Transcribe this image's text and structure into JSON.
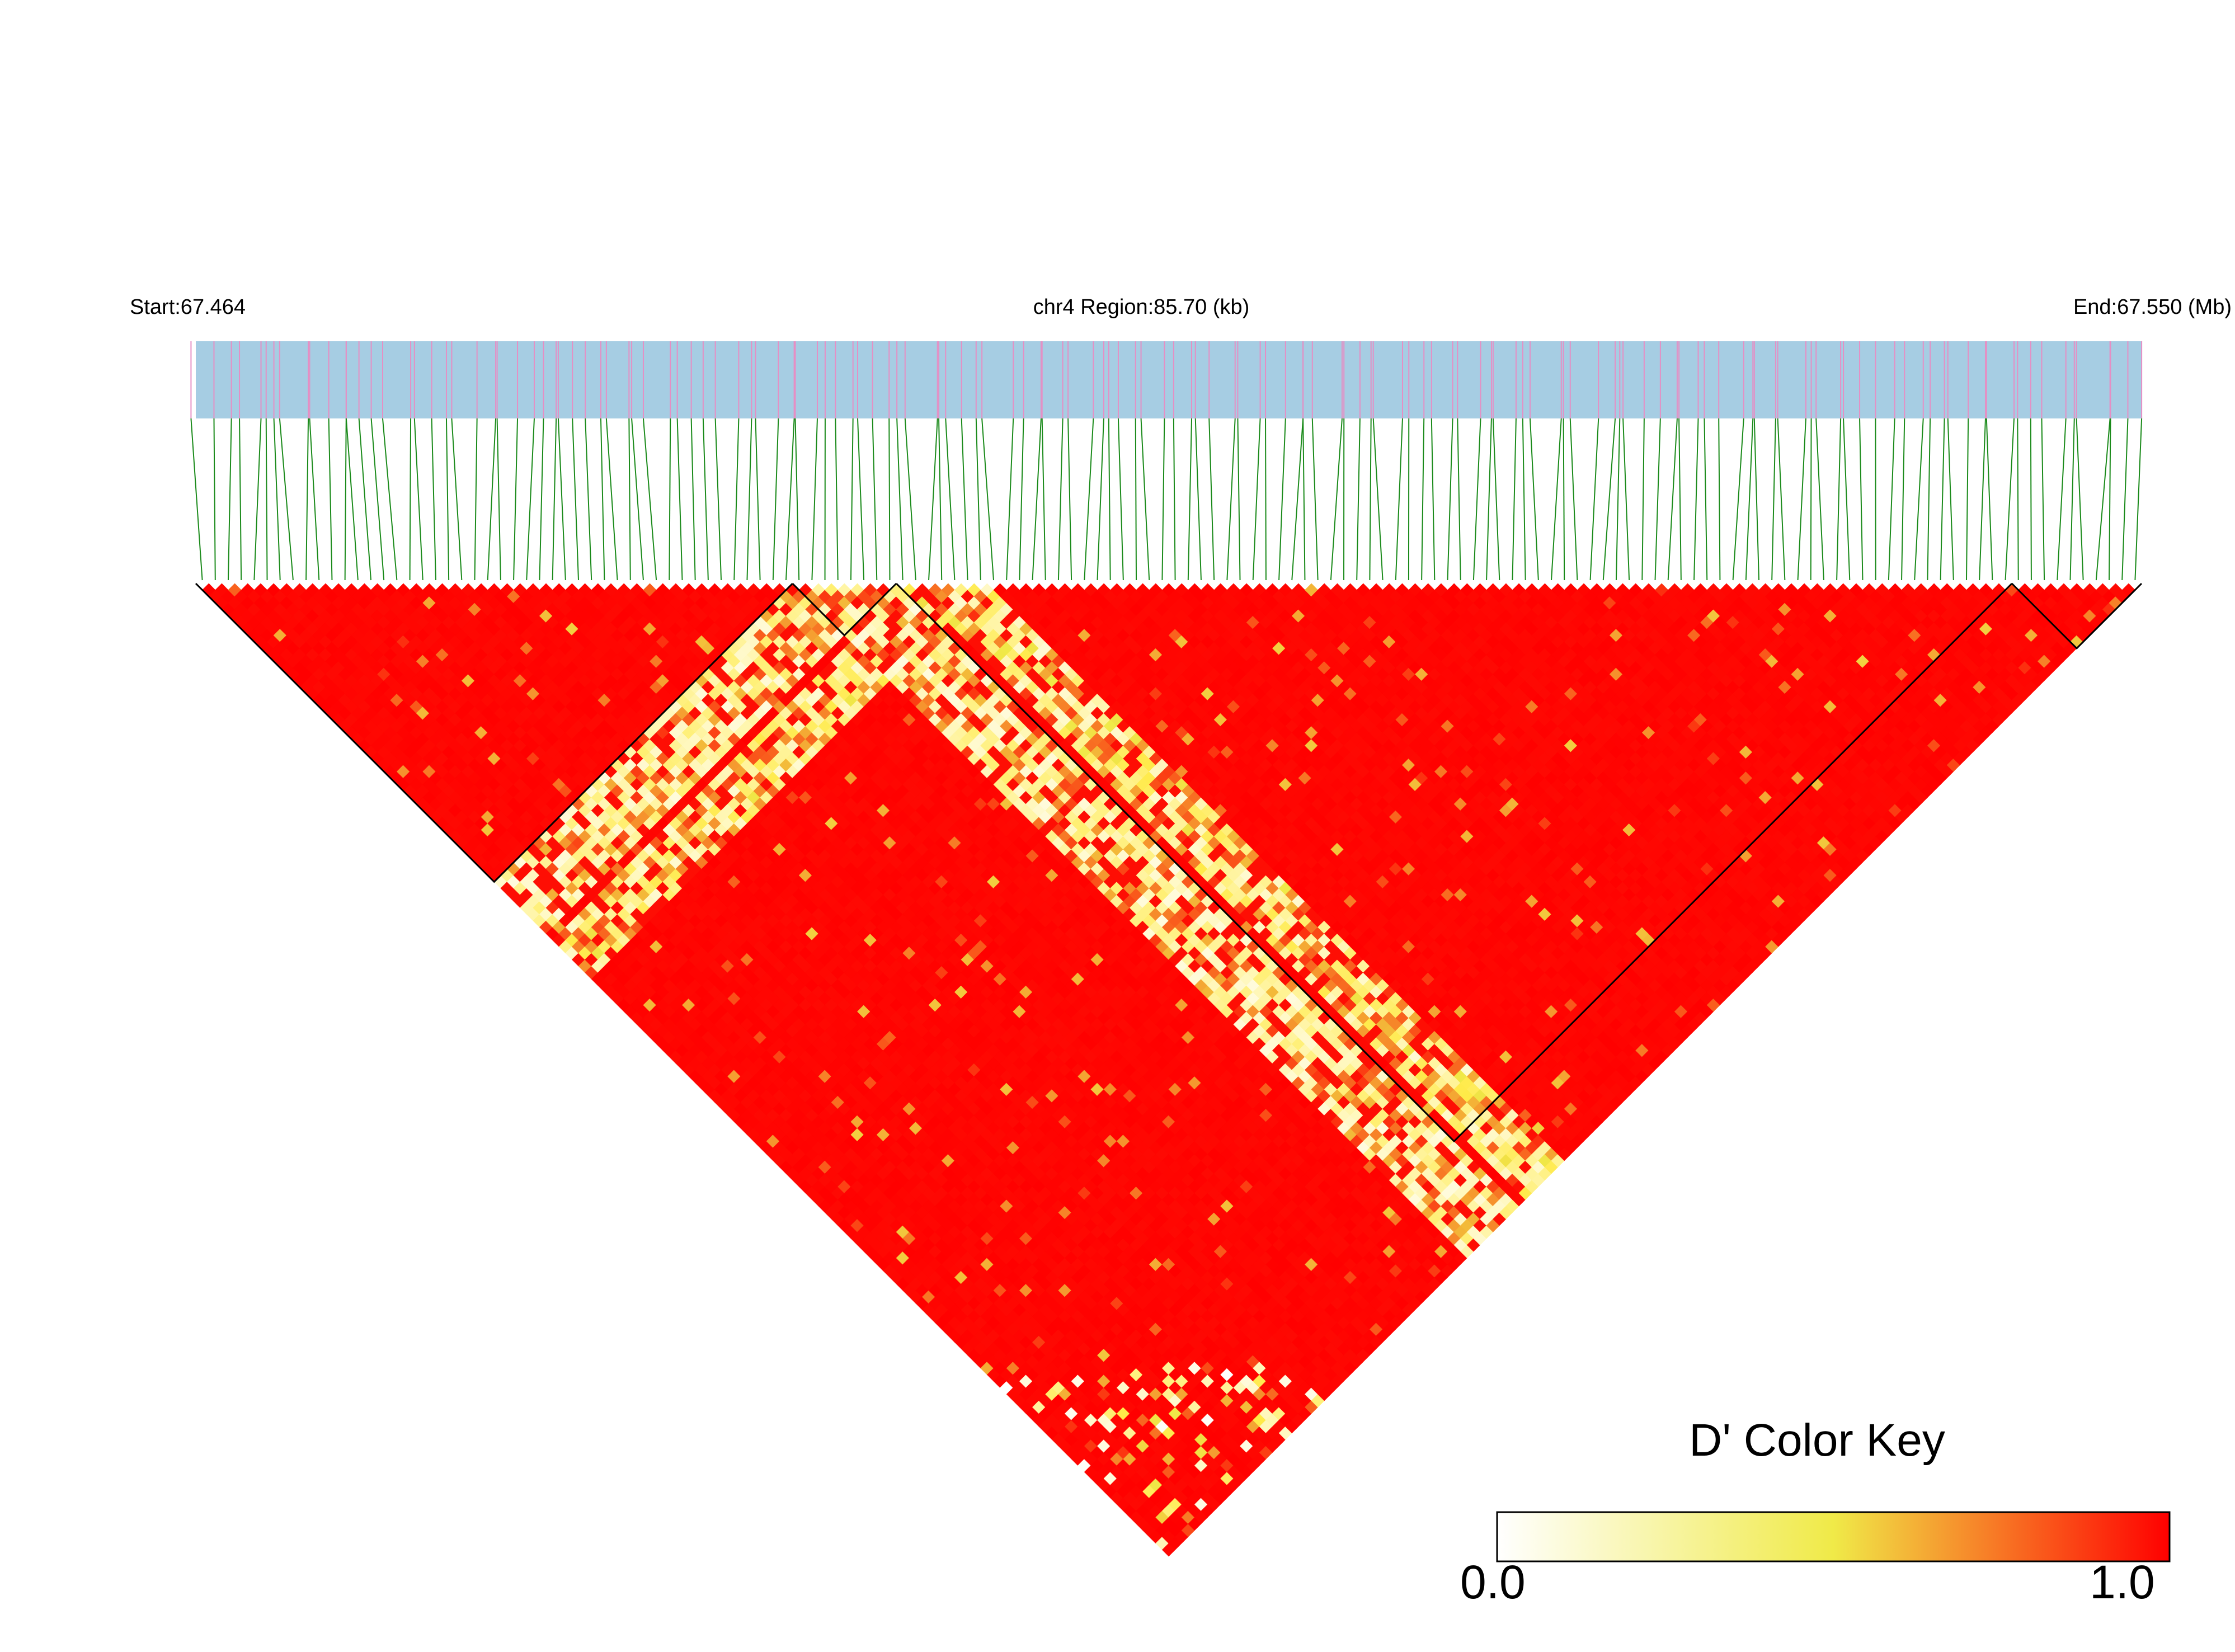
{
  "header": {
    "start_label": "Start:67.464",
    "region_label": "chr4 Region:85.70 (kb)",
    "end_label": "End:67.550 (Mb)"
  },
  "color_key": {
    "title": "D' Color Key",
    "min_label": "0.0",
    "max_label": "1.0",
    "colors": [
      "#ffffff",
      "#f0ea48",
      "#ff0000"
    ]
  },
  "chart_data": {
    "type": "heatmap",
    "metric": "D'",
    "chromosome": "chr4",
    "start_mb": 67.464,
    "end_mb": 67.55,
    "region_kb": 85.7,
    "marker_count": 150,
    "value_range": [
      0,
      1
    ],
    "colors": {
      "gene_track": "#a6cde3",
      "marker_tick": "#e58fc4",
      "connector": "#1a8a1a",
      "high_ld": "#ff0000",
      "block_outline": "#000000"
    },
    "ld_blocks": [
      {
        "first_marker": 1,
        "last_marker": 46
      },
      {
        "first_marker": 47,
        "last_marker": 54
      },
      {
        "first_marker": 55,
        "last_marker": 140
      },
      {
        "first_marker": 141,
        "last_marker": 150
      }
    ],
    "low_ld_bands": [
      {
        "first_marker": 47,
        "last_marker": 54,
        "d_prime": 0.3
      },
      {
        "first_marker": 56,
        "last_marker": 61,
        "d_prime": 0.4
      }
    ]
  }
}
